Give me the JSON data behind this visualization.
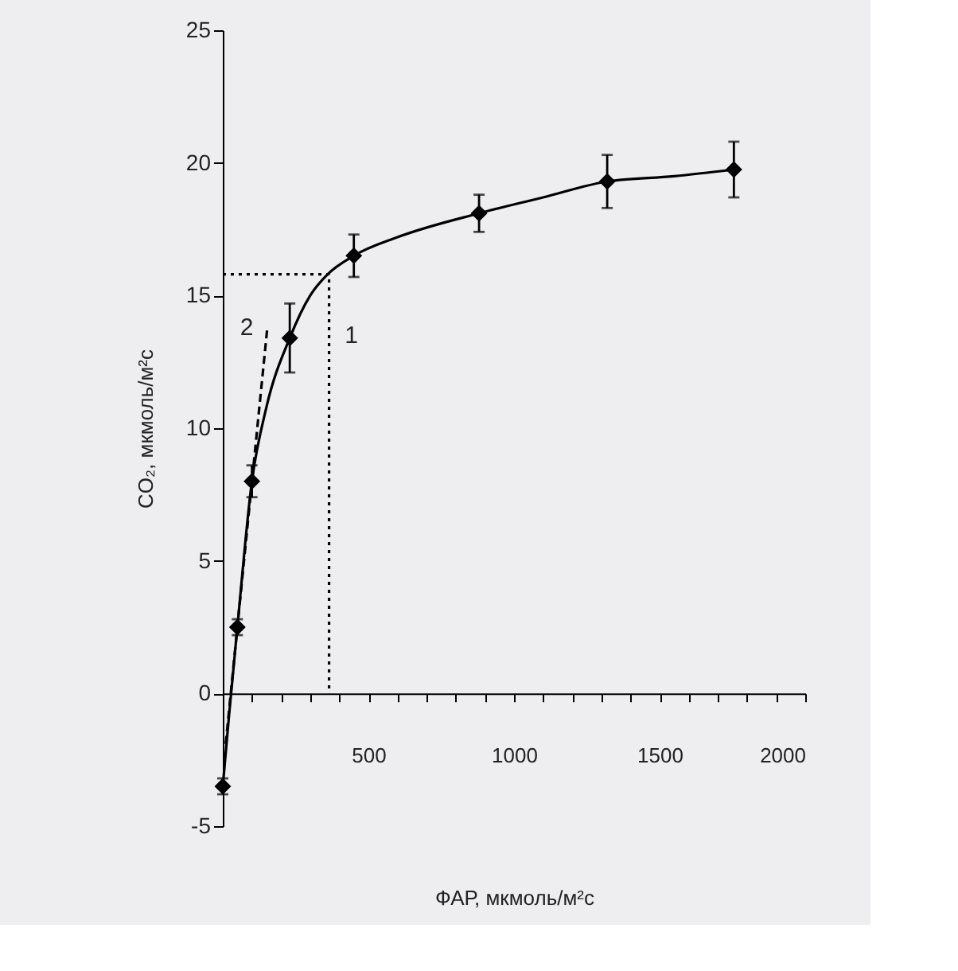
{
  "chart_data": {
    "type": "scatter",
    "xlabel": "ФАР, мкмоль/м²с",
    "ylabel": "CO₂, мкмоль/м²с",
    "xlim": [
      0,
      2000
    ],
    "ylim": [
      -5,
      25
    ],
    "xticks": [
      {
        "value": 0,
        "label": null
      },
      {
        "value": 100,
        "label": null
      },
      {
        "value": 200,
        "label": null
      },
      {
        "value": 300,
        "label": null
      },
      {
        "value": 400,
        "label": null
      },
      500,
      {
        "value": 600,
        "label": null
      },
      {
        "value": 700,
        "label": null
      },
      {
        "value": 800,
        "label": null
      },
      {
        "value": 900,
        "label": null
      },
      1000,
      {
        "value": 1100,
        "label": null
      },
      {
        "value": 1200,
        "label": null
      },
      {
        "value": 1300,
        "label": null
      },
      {
        "value": 1400,
        "label": null
      },
      1500,
      {
        "value": 1600,
        "label": null
      },
      {
        "value": 1700,
        "label": null
      },
      {
        "value": 1800,
        "label": null
      },
      {
        "value": 1900,
        "label": null
      },
      2000
    ],
    "yticks": [
      -5,
      0,
      5,
      10,
      15,
      20,
      25
    ],
    "grid": false,
    "series": [
      {
        "type": "line",
        "color": "#000000",
        "line_style": "solid",
        "marker": "none",
        "x": [
          0,
          20,
          50,
          100,
          150,
          230,
          300,
          360,
          450,
          600,
          880,
          1100,
          1320,
          1550,
          1755
        ],
        "values": [
          -3.5,
          -1,
          2.5,
          8,
          10.8,
          13.4,
          15,
          15.8,
          16.5,
          17.2,
          18.1,
          18.7,
          19.3,
          19.5,
          19.75
        ]
      },
      {
        "type": "line",
        "color": "#000000",
        "line_style": "dashed",
        "marker": "none",
        "x": [
          10,
          153
        ],
        "values": [
          -1.9,
          13.8
        ]
      },
      {
        "type": "line",
        "color": "#000000",
        "line_style": "dotted",
        "marker": "none",
        "x": [
          0,
          365,
          365
        ],
        "values": [
          15.8,
          15.8,
          0
        ]
      },
      {
        "color": "#000000",
        "marker": "diamond",
        "x": [
          0,
          50,
          100,
          230,
          450,
          880,
          1320,
          1755
        ],
        "values": [
          -3.5,
          2.5,
          8,
          13.4,
          16.5,
          18.1,
          19.3,
          19.75
        ],
        "errors": [
          0.3,
          0.3,
          0.6,
          1.3,
          0.8,
          0.7,
          1,
          1.05
        ]
      }
    ],
    "annotations": [
      {
        "text": "1",
        "x": 365,
        "y": 13.5
      },
      {
        "text": "2",
        "x": 153,
        "y": 13.8
      }
    ]
  }
}
